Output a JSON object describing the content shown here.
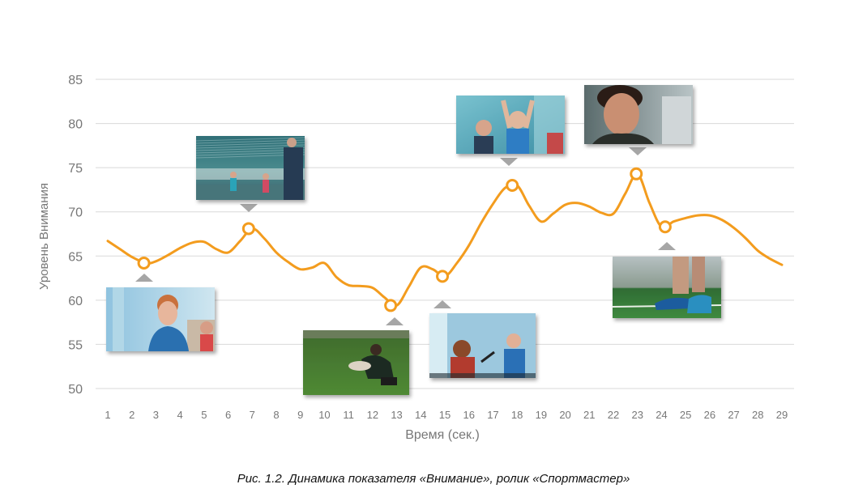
{
  "chart_data": {
    "type": "line",
    "xlabel": "Время (сек.)",
    "ylabel": "Уровень Внимания",
    "ylim": [
      50,
      85
    ],
    "yticks": [
      50,
      55,
      60,
      65,
      70,
      75,
      80,
      85
    ],
    "xticks": [
      1,
      2,
      3,
      4,
      5,
      6,
      7,
      8,
      9,
      10,
      11,
      12,
      13,
      14,
      15,
      16,
      17,
      18,
      19,
      20,
      21,
      22,
      23,
      24,
      25,
      26,
      27,
      28,
      29
    ],
    "xlim": [
      1,
      29
    ],
    "grid": true,
    "line_color": "#F39C1E",
    "series": [
      {
        "x": [
          1,
          1.5,
          2,
          2.6,
          3,
          3.5,
          4,
          4.5,
          5,
          5.5,
          6,
          6.5,
          7,
          7.5,
          8,
          8.5,
          9,
          9.5,
          10,
          10.5,
          11,
          11.5,
          12,
          12.5,
          13,
          13.5,
          14,
          14.5,
          15,
          15.5,
          16,
          16.5,
          17,
          17.5,
          18,
          18.5,
          19,
          19.5,
          20,
          20.5,
          21,
          21.5,
          22,
          22.5,
          23,
          23.5,
          24,
          24.5,
          25,
          25.5,
          26,
          26.5,
          27,
          27.5,
          28,
          28.5,
          29
        ],
        "y": [
          66.7,
          65.8,
          64.9,
          64.2,
          64.4,
          65.1,
          65.9,
          66.5,
          66.6,
          65.8,
          65.4,
          66.7,
          68.1,
          67.0,
          65.4,
          64.3,
          63.5,
          63.7,
          64.2,
          62.6,
          61.7,
          61.6,
          61.4,
          60.3,
          59.4,
          61.5,
          63.7,
          63.5,
          62.7,
          64.2,
          66.2,
          68.7,
          70.9,
          72.7,
          73.0,
          70.7,
          68.9,
          69.8,
          70.8,
          71.0,
          70.6,
          69.9,
          69.8,
          72.1,
          74.3,
          71.0,
          68.3,
          68.9,
          69.3,
          69.6,
          69.6,
          69.1,
          68.2,
          67.0,
          65.6,
          64.7,
          64.0
        ]
      }
    ],
    "markers": [
      {
        "x": 2.5,
        "y": 64.2
      },
      {
        "x": 6.85,
        "y": 68.1
      },
      {
        "x": 12.75,
        "y": 59.4
      },
      {
        "x": 14.9,
        "y": 62.7
      },
      {
        "x": 17.8,
        "y": 73.0
      },
      {
        "x": 22.95,
        "y": 74.3
      },
      {
        "x": 24.15,
        "y": 68.3
      }
    ],
    "caption": "Рис. 1.2.  Динамика показателя «Внимание», ролик «Спортмастер»"
  },
  "frames": [
    {
      "name": "frame-boy-gym",
      "scene": "boy-gym",
      "pointer": "up"
    },
    {
      "name": "frame-volleyball-gym",
      "scene": "volleyball-gym",
      "pointer": "down"
    },
    {
      "name": "frame-boy-grass",
      "scene": "boy-grass",
      "pointer": "up"
    },
    {
      "name": "frame-kids-gym-talk",
      "scene": "kids-gym",
      "pointer": "up"
    },
    {
      "name": "frame-kids-celebrate",
      "scene": "celebrate",
      "pointer": "down"
    },
    {
      "name": "frame-boy-closeup",
      "scene": "closeup",
      "pointer": "down"
    },
    {
      "name": "frame-football-shoes",
      "scene": "shoes",
      "pointer": "up"
    }
  ]
}
